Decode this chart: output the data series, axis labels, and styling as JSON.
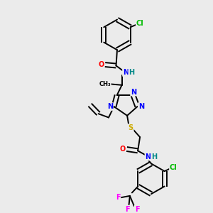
{
  "bg_color": "#ebebeb",
  "atoms": {
    "colors": {
      "C": "#000000",
      "N": "#0000ff",
      "O": "#ff0000",
      "S": "#ccaa00",
      "Cl": "#00bb00",
      "F": "#ff00ff",
      "H": "#008888"
    }
  },
  "font_size": 7.0
}
